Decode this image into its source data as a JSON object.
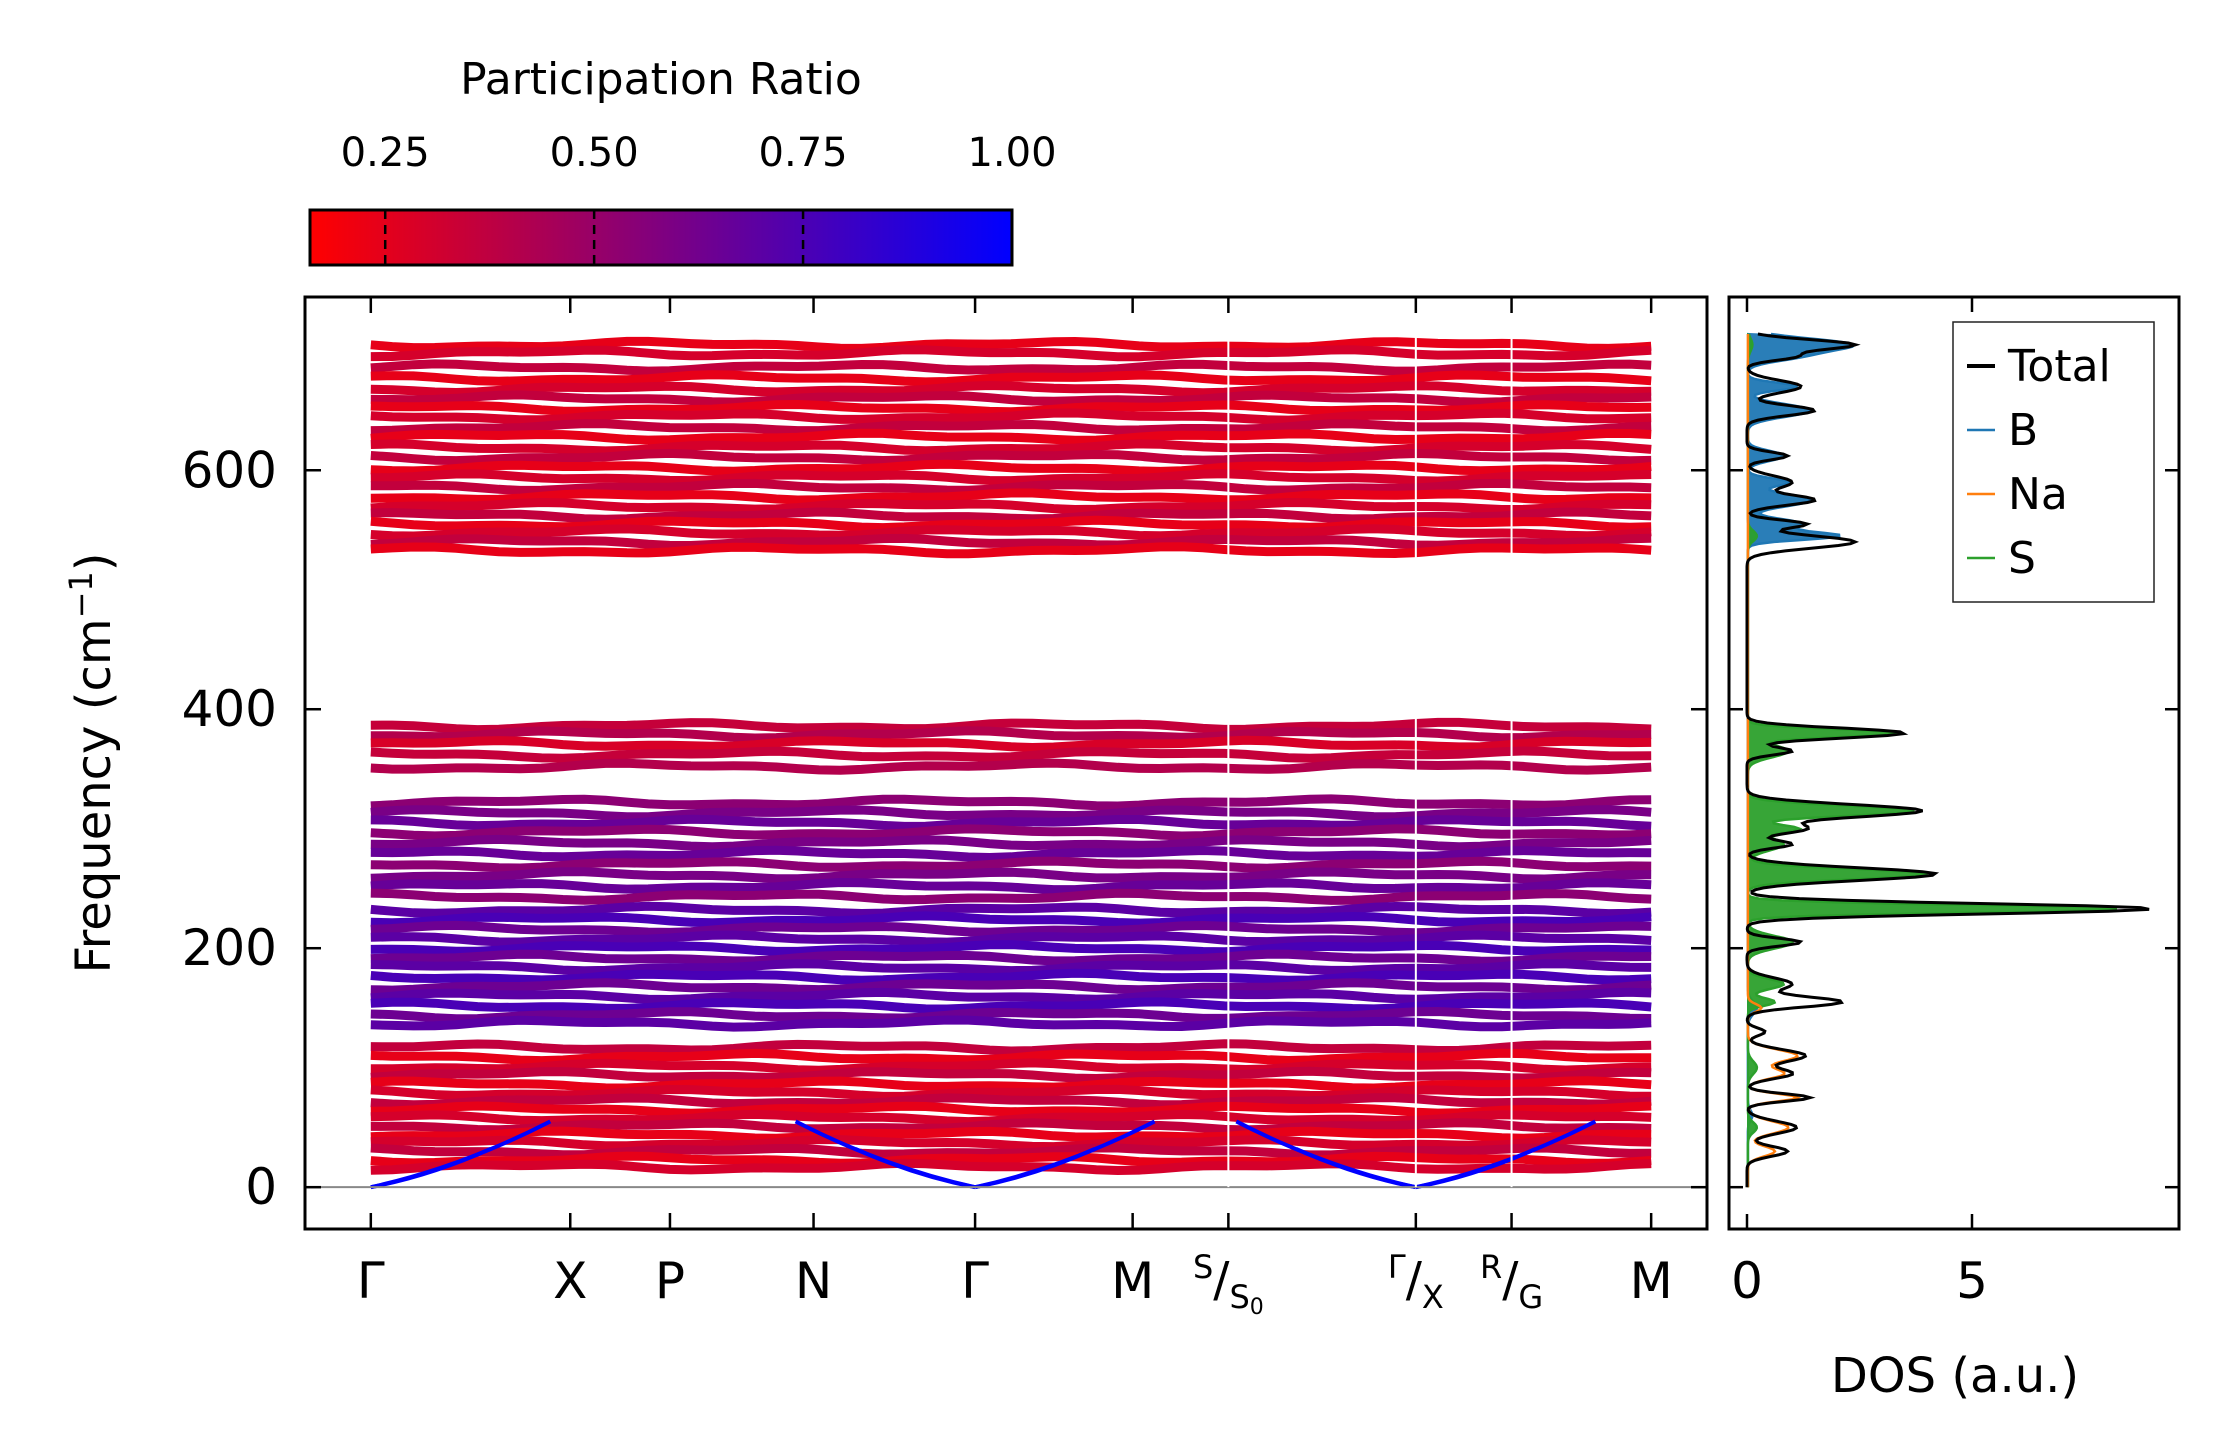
{
  "chart_data": [
    {
      "type": "line",
      "name": "phonon-band-structure",
      "xlabel": "",
      "ylabel": "Frequency (cm",
      "ylabel_sup": "−1",
      "ylabel_close": ")",
      "ylim": [
        -35,
        745
      ],
      "yticks": [
        0,
        200,
        400,
        600
      ],
      "ytick_labels": [
        "0",
        "200",
        "400",
        "600"
      ],
      "kpath": [
        {
          "label": "Γ",
          "pos": 0.0
        },
        {
          "label": "X",
          "pos": 1.0
        },
        {
          "label": "P",
          "pos": 1.5
        },
        {
          "label": "N",
          "pos": 2.22
        },
        {
          "label": "Γ",
          "pos": 3.03
        },
        {
          "label": "M",
          "pos": 3.82
        },
        {
          "label": "S",
          "sub": "S",
          "sub0": "0",
          "pos": 4.3,
          "split": true
        },
        {
          "label": "Γ",
          "sub": "X",
          "pos": 5.24,
          "split": true
        },
        {
          "label": "R",
          "sub": "G",
          "pos": 5.72,
          "split": true
        },
        {
          "label": "M",
          "pos": 6.42
        }
      ],
      "xlim": [
        -0.33,
        6.7
      ],
      "colorbar": {
        "label": "Participation Ratio",
        "range": [
          0.16,
          1.0
        ],
        "ticks": [
          0.25,
          0.5,
          0.75,
          1.0
        ],
        "tick_labels": [
          "0.25",
          "0.50",
          "0.75",
          "1.00"
        ],
        "color_low": "#ff0000",
        "color_high": "#0000ff"
      },
      "band_groups": [
        {
          "range": [
            530,
            710
          ],
          "participation": 0.3
        },
        {
          "range": [
            350,
            390
          ],
          "participation": 0.35
        },
        {
          "range": [
            235,
            325
          ],
          "participation": 0.6
        },
        {
          "range": [
            135,
            235
          ],
          "participation": 0.7
        },
        {
          "range": [
            15,
            120
          ],
          "participation": 0.3
        }
      ],
      "band_frequencies": [
        705,
        698,
        686,
        677,
        668,
        660,
        652,
        645,
        636,
        628,
        619,
        611,
        602,
        594,
        586,
        578,
        570,
        562,
        555,
        548,
        540,
        533,
        386,
        379,
        371,
        362,
        352,
        322,
        313,
        305,
        297,
        288,
        279,
        270,
        261,
        252,
        243,
        232,
        224,
        216,
        208,
        200,
        192,
        184,
        176,
        168,
        160,
        152,
        144,
        137,
        117,
        109,
        101,
        94,
        86,
        79,
        72,
        65,
        58,
        51,
        44,
        37,
        30,
        23,
        17
      ],
      "acoustic_color": "#0000ff"
    },
    {
      "type": "line",
      "name": "density-of-states",
      "xlabel": "DOS (a.u.)",
      "xlim": [
        -0.4,
        9.6
      ],
      "xticks": [
        0,
        5
      ],
      "xtick_labels": [
        "0",
        "5"
      ],
      "ylim": [
        -35,
        745
      ],
      "legend": {
        "placement": "top-right",
        "entries": [
          {
            "name": "Total",
            "color": "#000000"
          },
          {
            "name": "B",
            "color": "#1f77b4"
          },
          {
            "name": "Na",
            "color": "#ff7f0e"
          },
          {
            "name": "S",
            "color": "#2ca02c"
          }
        ]
      },
      "series": [
        {
          "name": "Total",
          "color": "#000000",
          "peaks": [
            [
              0,
              0
            ],
            [
              30,
              0.9
            ],
            [
              50,
              1.1
            ],
            [
              75,
              1.4
            ],
            [
              95,
              1.0
            ],
            [
              110,
              1.3
            ],
            [
              130,
              0.4
            ],
            [
              155,
              2.1
            ],
            [
              170,
              1.0
            ],
            [
              205,
              1.2
            ],
            [
              233,
              9.0
            ],
            [
              262,
              4.2
            ],
            [
              287,
              1.0
            ],
            [
              300,
              1.3
            ],
            [
              315,
              3.9
            ],
            [
              365,
              1.0
            ],
            [
              380,
              3.5
            ],
            [
              540,
              2.4
            ],
            [
              555,
              1.3
            ],
            [
              575,
              1.5
            ],
            [
              590,
              1.0
            ],
            [
              612,
              0.9
            ],
            [
              650,
              1.5
            ],
            [
              670,
              1.2
            ],
            [
              695,
              1.0
            ],
            [
              705,
              2.4
            ]
          ]
        },
        {
          "name": "B",
          "color": "#1f77b4",
          "peaks": [
            [
              0,
              0
            ],
            [
              60,
              0.1
            ],
            [
              150,
              0.2
            ],
            [
              545,
              2.0
            ],
            [
              555,
              1.2
            ],
            [
              575,
              1.4
            ],
            [
              590,
              0.9
            ],
            [
              612,
              0.8
            ],
            [
              650,
              1.4
            ],
            [
              670,
              1.1
            ],
            [
              695,
              0.9
            ],
            [
              705,
              2.3
            ]
          ]
        },
        {
          "name": "Na",
          "color": "#ff7f0e",
          "peaks": [
            [
              0,
              0
            ],
            [
              30,
              0.6
            ],
            [
              50,
              0.9
            ],
            [
              75,
              1.1
            ],
            [
              95,
              0.8
            ],
            [
              110,
              1.1
            ],
            [
              150,
              0.3
            ]
          ]
        },
        {
          "name": "S",
          "color": "#2ca02c",
          "peaks": [
            [
              0,
              0
            ],
            [
              50,
              0.2
            ],
            [
              100,
              0.2
            ],
            [
              155,
              0.6
            ],
            [
              170,
              0.8
            ],
            [
              205,
              1.0
            ],
            [
              233,
              8.3
            ],
            [
              262,
              4.0
            ],
            [
              287,
              0.8
            ],
            [
              300,
              1.1
            ],
            [
              315,
              3.7
            ],
            [
              365,
              0.9
            ],
            [
              380,
              3.4
            ],
            [
              545,
              0.2
            ],
            [
              705,
              0.1
            ]
          ]
        }
      ]
    }
  ]
}
